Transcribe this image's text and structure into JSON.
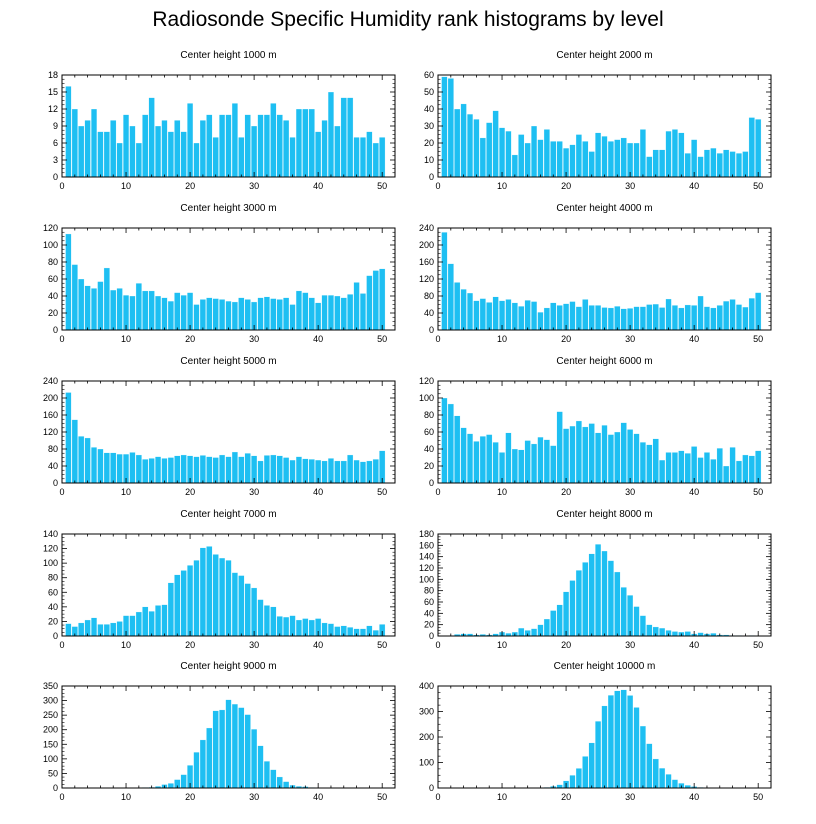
{
  "title": "Radiosonde Specific Humidity rank histograms by level",
  "colors": {
    "bar": "#1ebff2",
    "bar_edge": "#ffffff",
    "axis": "#000000"
  },
  "chart_data": [
    {
      "type": "bar",
      "title": "Center height 1000 m",
      "xlim": [
        0,
        52
      ],
      "ylim": [
        0,
        18
      ],
      "xticks": [
        0,
        10,
        20,
        30,
        40,
        50
      ],
      "yticks": [
        0,
        3,
        6,
        9,
        12,
        15,
        18
      ],
      "values": [
        16,
        12,
        9,
        10,
        12,
        8,
        8,
        10,
        6,
        11,
        9,
        6,
        11,
        14,
        9,
        10,
        8,
        10,
        8,
        13,
        6,
        10,
        11,
        7,
        11,
        11,
        13,
        7,
        11,
        9,
        11,
        11,
        13,
        11,
        10,
        7,
        12,
        12,
        12,
        8,
        10,
        15,
        9,
        14,
        14,
        7,
        7,
        8,
        6,
        7
      ]
    },
    {
      "type": "bar",
      "title": "Center height 2000 m",
      "xlim": [
        0,
        52
      ],
      "ylim": [
        0,
        60
      ],
      "xticks": [
        0,
        10,
        20,
        30,
        40,
        50
      ],
      "yticks": [
        0,
        10,
        20,
        30,
        40,
        50,
        60
      ],
      "values": [
        59,
        58,
        40,
        43,
        37,
        34,
        23,
        32,
        39,
        29,
        27,
        13,
        25,
        20,
        30,
        22,
        28,
        21,
        21,
        17,
        19,
        25,
        21,
        15,
        26,
        24,
        21,
        22,
        23,
        20,
        20,
        28,
        12,
        16,
        16,
        27,
        28,
        26,
        14,
        22,
        12,
        16,
        17,
        14,
        16,
        15,
        14,
        15,
        35,
        34
      ]
    },
    {
      "type": "bar",
      "title": "Center height 3000 m",
      "xlim": [
        0,
        52
      ],
      "ylim": [
        0,
        120
      ],
      "xticks": [
        0,
        10,
        20,
        30,
        40,
        50
      ],
      "yticks": [
        0,
        20,
        40,
        60,
        80,
        100,
        120
      ],
      "values": [
        113,
        77,
        60,
        52,
        49,
        57,
        73,
        47,
        49,
        41,
        40,
        55,
        46,
        46,
        40,
        38,
        34,
        44,
        41,
        44,
        30,
        36,
        38,
        37,
        36,
        34,
        33,
        38,
        36,
        33,
        38,
        39,
        37,
        36,
        38,
        30,
        46,
        44,
        38,
        32,
        41,
        41,
        40,
        38,
        42,
        56,
        43,
        64,
        70,
        72
      ]
    },
    {
      "type": "bar",
      "title": "Center height 4000 m",
      "xlim": [
        0,
        52
      ],
      "ylim": [
        0,
        240
      ],
      "xticks": [
        0,
        10,
        20,
        30,
        40,
        50
      ],
      "yticks": [
        0,
        40,
        80,
        120,
        160,
        200,
        240
      ],
      "values": [
        230,
        156,
        112,
        96,
        87,
        69,
        74,
        65,
        78,
        69,
        72,
        64,
        56,
        70,
        67,
        42,
        52,
        64,
        58,
        62,
        67,
        55,
        72,
        58,
        58,
        53,
        52,
        56,
        50,
        51,
        55,
        55,
        60,
        61,
        53,
        73,
        58,
        52,
        59,
        58,
        80,
        55,
        52,
        58,
        68,
        72,
        60,
        54,
        75,
        88
      ]
    },
    {
      "type": "bar",
      "title": "Center height 5000 m",
      "xlim": [
        0,
        52
      ],
      "ylim": [
        0,
        240
      ],
      "xticks": [
        0,
        10,
        20,
        30,
        40,
        50
      ],
      "yticks": [
        0,
        40,
        80,
        120,
        160,
        200,
        240
      ],
      "values": [
        213,
        149,
        110,
        106,
        84,
        80,
        71,
        71,
        68,
        68,
        72,
        66,
        56,
        58,
        62,
        58,
        60,
        64,
        66,
        64,
        62,
        65,
        62,
        60,
        66,
        62,
        73,
        62,
        70,
        64,
        52,
        65,
        66,
        64,
        60,
        54,
        62,
        57,
        56,
        54,
        52,
        58,
        52,
        52,
        66,
        54,
        50,
        52,
        56,
        76
      ]
    },
    {
      "type": "bar",
      "title": "Center height 6000 m",
      "xlim": [
        0,
        52
      ],
      "ylim": [
        0,
        120
      ],
      "xticks": [
        0,
        10,
        20,
        30,
        40,
        50
      ],
      "yticks": [
        0,
        20,
        40,
        60,
        80,
        100,
        120
      ],
      "values": [
        100,
        93,
        79,
        65,
        58,
        49,
        55,
        57,
        48,
        36,
        59,
        40,
        39,
        50,
        46,
        54,
        51,
        44,
        84,
        64,
        67,
        73,
        66,
        70,
        59,
        68,
        57,
        60,
        71,
        63,
        58,
        48,
        45,
        52,
        27,
        36,
        36,
        38,
        35,
        43,
        30,
        36,
        28,
        41,
        20,
        42,
        26,
        33,
        32,
        38
      ]
    },
    {
      "type": "bar",
      "title": "Center height 7000 m",
      "xlim": [
        0,
        52
      ],
      "ylim": [
        0,
        140
      ],
      "xticks": [
        0,
        10,
        20,
        30,
        40,
        50
      ],
      "yticks": [
        0,
        20,
        40,
        60,
        80,
        100,
        120,
        140
      ],
      "values": [
        17,
        13,
        18,
        22,
        25,
        16,
        16,
        18,
        20,
        28,
        28,
        33,
        40,
        34,
        42,
        43,
        73,
        84,
        90,
        97,
        104,
        121,
        123,
        112,
        107,
        104,
        87,
        83,
        72,
        66,
        50,
        42,
        40,
        27,
        26,
        28,
        22,
        24,
        22,
        24,
        18,
        17,
        13,
        14,
        12,
        10,
        10,
        14,
        8,
        16
      ]
    },
    {
      "type": "bar",
      "title": "Center height 8000 m",
      "xlim": [
        0,
        52
      ],
      "ylim": [
        0,
        180
      ],
      "xticks": [
        0,
        10,
        20,
        30,
        40,
        50
      ],
      "yticks": [
        0,
        20,
        40,
        60,
        80,
        100,
        120,
        140,
        160,
        180
      ],
      "values": [
        0,
        0,
        3,
        4,
        4,
        2,
        3,
        2,
        4,
        7,
        5,
        7,
        14,
        10,
        13,
        20,
        30,
        45,
        55,
        78,
        98,
        116,
        130,
        145,
        162,
        150,
        133,
        113,
        86,
        72,
        52,
        36,
        20,
        16,
        14,
        10,
        8,
        7,
        8,
        4,
        6,
        4,
        5,
        2,
        2,
        1,
        1,
        0,
        1,
        0
      ]
    },
    {
      "type": "bar",
      "title": "Center height 9000 m",
      "xlim": [
        0,
        52
      ],
      "ylim": [
        0,
        350
      ],
      "xticks": [
        0,
        10,
        20,
        30,
        40,
        50
      ],
      "yticks": [
        0,
        50,
        100,
        150,
        200,
        250,
        300,
        350
      ],
      "values": [
        0,
        0,
        0,
        0,
        0,
        0,
        0,
        0,
        0,
        0,
        0,
        1,
        2,
        3,
        6,
        12,
        16,
        29,
        46,
        78,
        123,
        165,
        206,
        265,
        268,
        303,
        288,
        276,
        252,
        202,
        145,
        92,
        63,
        38,
        22,
        10,
        6,
        5,
        2,
        1,
        1,
        0,
        0,
        0,
        0,
        0,
        0,
        0,
        0,
        0
      ]
    },
    {
      "type": "bar",
      "title": "Center height 10000 m",
      "xlim": [
        0,
        52
      ],
      "ylim": [
        0,
        400
      ],
      "xticks": [
        0,
        10,
        20,
        30,
        40,
        50
      ],
      "yticks": [
        0,
        100,
        200,
        300,
        400
      ],
      "values": [
        0,
        0,
        0,
        0,
        0,
        0,
        0,
        0,
        0,
        0,
        0,
        0,
        0,
        1,
        1,
        2,
        3,
        7,
        13,
        28,
        50,
        77,
        124,
        177,
        262,
        322,
        364,
        381,
        385,
        363,
        316,
        243,
        174,
        114,
        78,
        54,
        33,
        19,
        11,
        6,
        3,
        2,
        1,
        1,
        0,
        0,
        0,
        0,
        0,
        0
      ]
    }
  ]
}
